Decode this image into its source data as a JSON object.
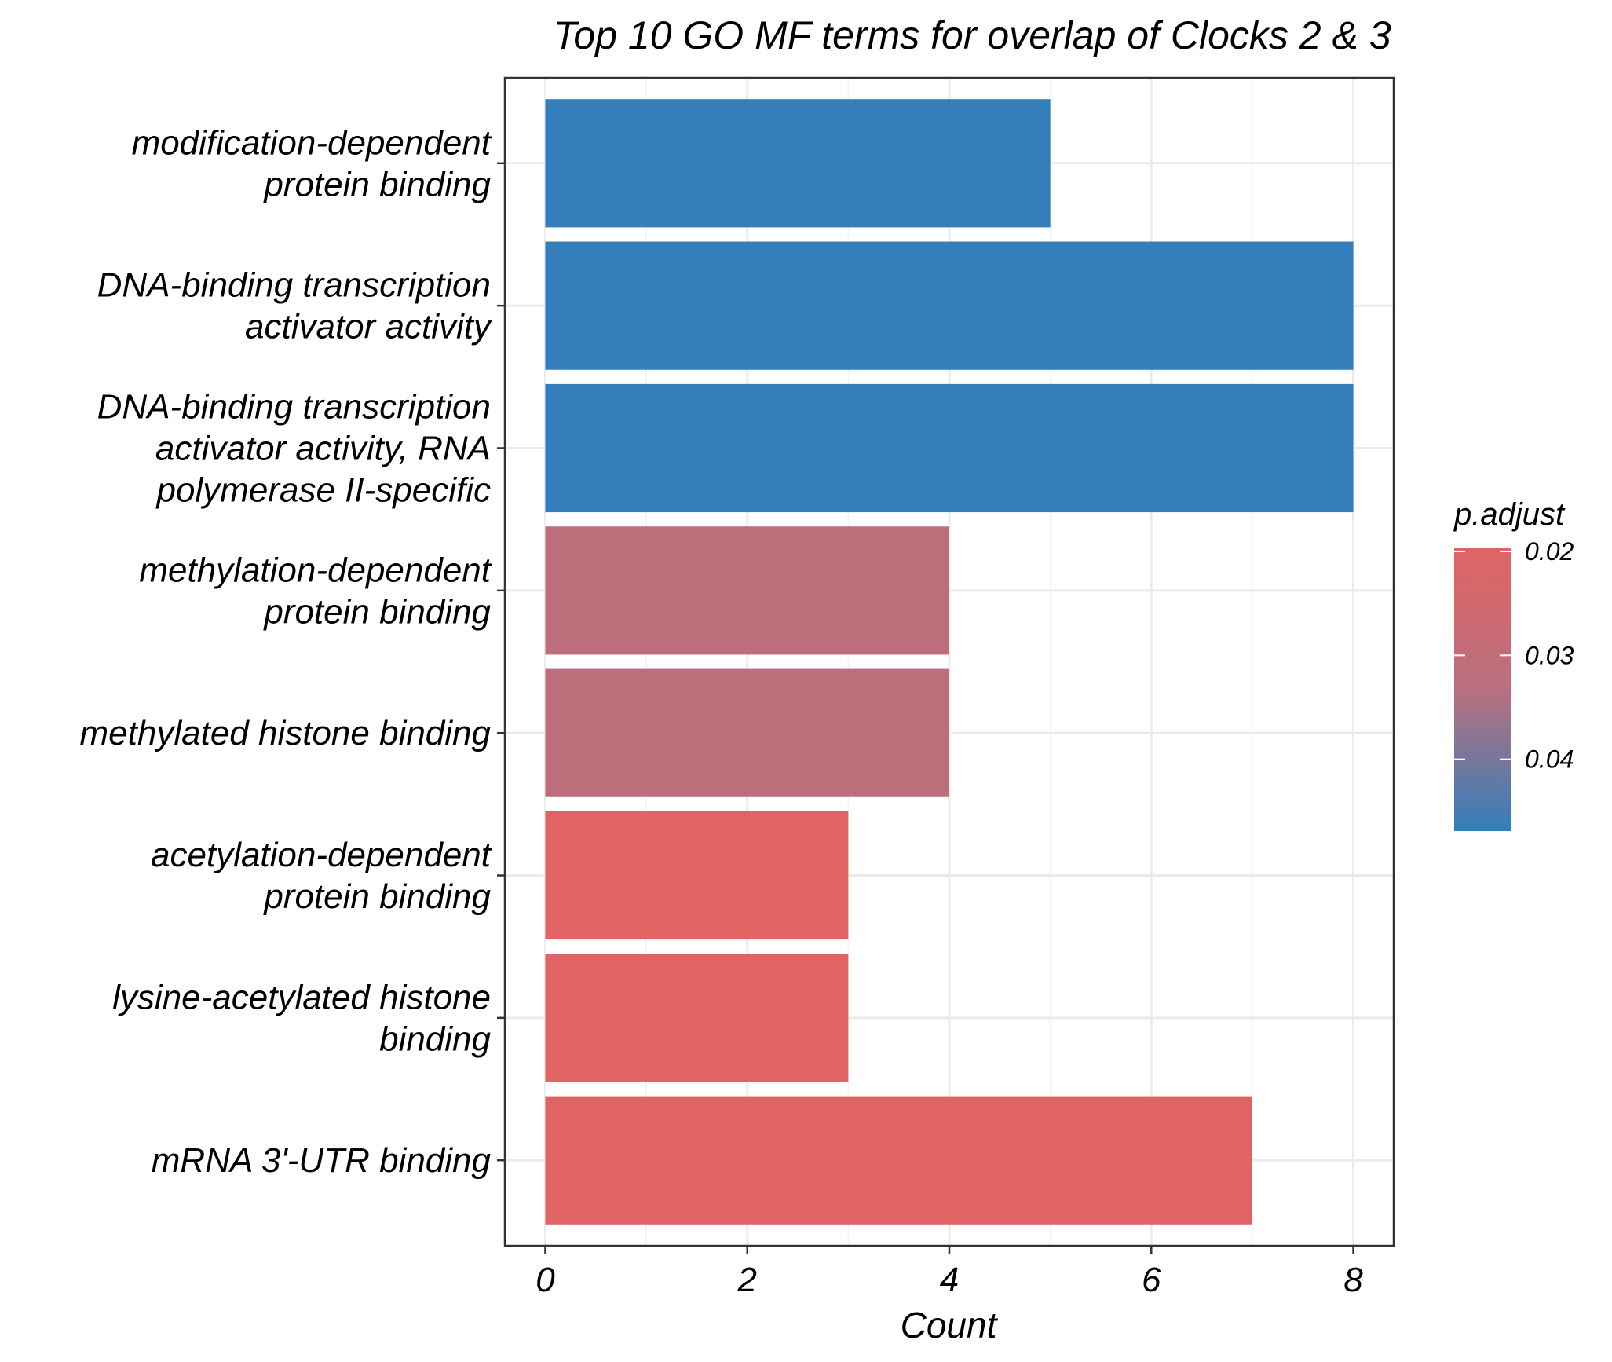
{
  "chart_data": {
    "type": "bar",
    "orientation": "horizontal",
    "title": "Top 10 GO MF terms for overlap of Clocks 2 & 3",
    "xlabel": "Count",
    "ylabel": "",
    "xlim": [
      -0.4,
      8.4
    ],
    "xticks": [
      0,
      2,
      4,
      6,
      8
    ],
    "grid": true,
    "legend_position": "right",
    "categories": [
      {
        "lines": [
          "mRNA 3'-UTR binding"
        ]
      },
      {
        "lines": [
          "lysine-acetylated histone",
          "binding"
        ]
      },
      {
        "lines": [
          "acetylation-dependent",
          "protein binding"
        ]
      },
      {
        "lines": [
          "methylated histone binding"
        ]
      },
      {
        "lines": [
          "methylation-dependent",
          "protein binding"
        ]
      },
      {
        "lines": [
          "DNA-binding transcription",
          "activator activity, RNA",
          "polymerase II-specific"
        ]
      },
      {
        "lines": [
          "DNA-binding transcription",
          "activator activity"
        ]
      },
      {
        "lines": [
          "modification-dependent",
          "protein binding"
        ]
      }
    ],
    "values": [
      7,
      3,
      3,
      4,
      4,
      8,
      8,
      5
    ],
    "p_adjust": [
      0.0197,
      0.0197,
      0.0197,
      0.0315,
      0.0315,
      0.0469,
      0.0469,
      0.0469
    ],
    "colorbar": {
      "title": "p.adjust",
      "min": 0.0197,
      "max": 0.0469,
      "ticks": [
        0.02,
        0.03,
        0.04
      ],
      "tick_labels": [
        "0.02",
        "0.03",
        "0.04"
      ],
      "low_color": "#e06463",
      "high_color": "#337ebb"
    }
  }
}
